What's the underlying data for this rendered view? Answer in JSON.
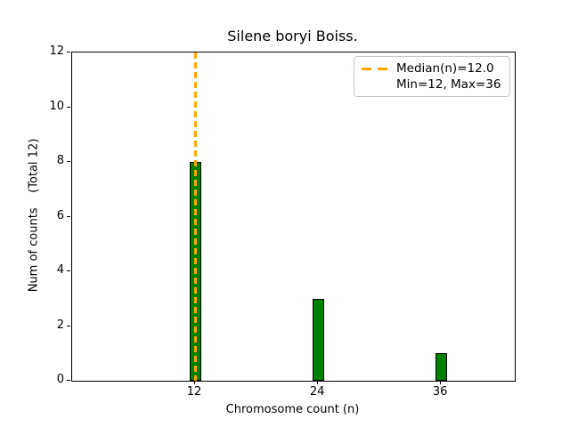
{
  "chart_data": {
    "type": "bar",
    "title": "Silene boryi Boiss.",
    "xlabel": "Chromosome count (n)",
    "ylabel": "Num of counts    (Total 12)",
    "x": [
      12,
      24,
      36
    ],
    "values": [
      8,
      3,
      1
    ],
    "total_counts": 12,
    "xticks": [
      12,
      24,
      36
    ],
    "yticks": [
      0,
      2,
      4,
      6,
      8,
      10,
      12
    ],
    "xlim": [
      0,
      43.2
    ],
    "ylim": [
      0,
      12
    ],
    "grid": false,
    "bar_color": "#008000",
    "bar_edge_color": "#000000",
    "median_line": {
      "x": 12.0,
      "color": "#FFA500",
      "style": "dashed"
    },
    "legend": {
      "position": "upper-right",
      "entries": [
        {
          "marker": "dashed-line",
          "color": "#FFA500",
          "label": "Median(n)=12.0"
        },
        {
          "marker": "none",
          "color": "",
          "label": "Min=12, Max=36"
        }
      ]
    }
  }
}
